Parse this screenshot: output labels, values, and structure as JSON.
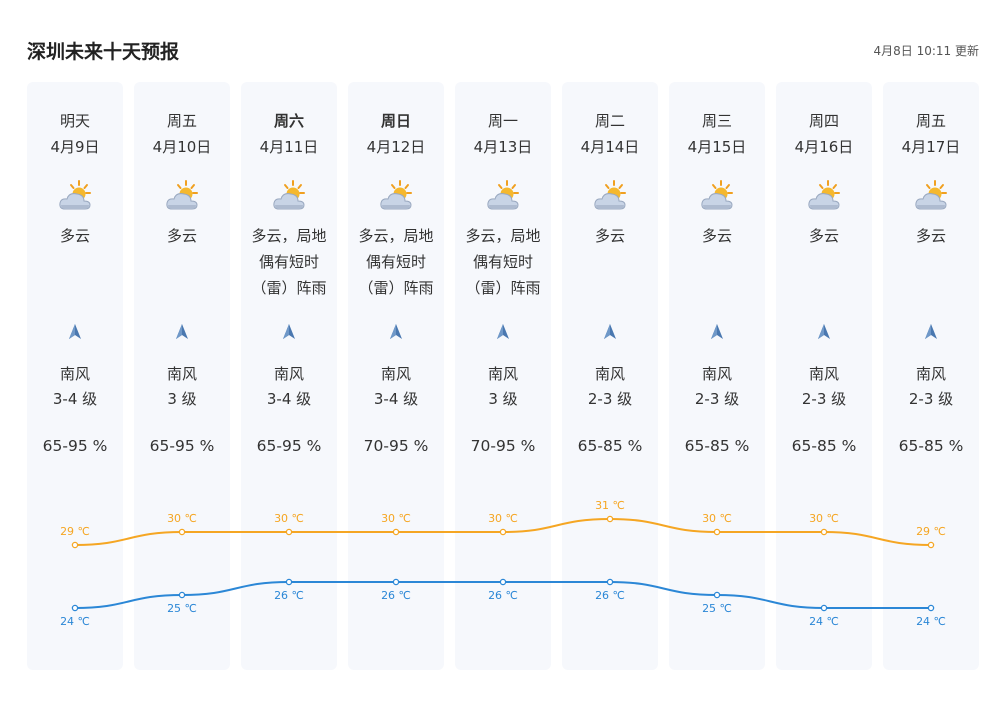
{
  "header": {
    "title": "深圳未来十天预报",
    "updated_date": "4月8日",
    "updated_time": "10:11",
    "updated_suffix": "更新"
  },
  "colors": {
    "high": "#f5a623",
    "low": "#2b87d6",
    "card_bg": "#f6f8fc"
  },
  "icons": {
    "weather": "partly-cloudy-icon",
    "wind": "wind-direction-arrow-icon"
  },
  "days": [
    {
      "weekday": "明天",
      "date": "4月9日",
      "bold": false,
      "condition": "多云",
      "wind_dir": "南风",
      "wind_level": "3-4 级",
      "humidity": "65-95 %"
    },
    {
      "weekday": "周五",
      "date": "4月10日",
      "bold": false,
      "condition": "多云",
      "wind_dir": "南风",
      "wind_level": "3 级",
      "humidity": "65-95 %"
    },
    {
      "weekday": "周六",
      "date": "4月11日",
      "bold": true,
      "condition": "多云，局地偶有短时（雷）阵雨",
      "wind_dir": "南风",
      "wind_level": "3-4 级",
      "humidity": "65-95 %"
    },
    {
      "weekday": "周日",
      "date": "4月12日",
      "bold": true,
      "condition": "多云，局地偶有短时（雷）阵雨",
      "wind_dir": "南风",
      "wind_level": "3-4 级",
      "humidity": "70-95 %"
    },
    {
      "weekday": "周一",
      "date": "4月13日",
      "bold": false,
      "condition": "多云，局地偶有短时（雷）阵雨",
      "wind_dir": "南风",
      "wind_level": "3 级",
      "humidity": "70-95 %"
    },
    {
      "weekday": "周二",
      "date": "4月14日",
      "bold": false,
      "condition": "多云",
      "wind_dir": "南风",
      "wind_level": "2-3 级",
      "humidity": "65-85 %"
    },
    {
      "weekday": "周三",
      "date": "4月15日",
      "bold": false,
      "condition": "多云",
      "wind_dir": "南风",
      "wind_level": "2-3 级",
      "humidity": "65-85 %"
    },
    {
      "weekday": "周四",
      "date": "4月16日",
      "bold": false,
      "condition": "多云",
      "wind_dir": "南风",
      "wind_level": "2-3 级",
      "humidity": "65-85 %"
    },
    {
      "weekday": "周五",
      "date": "4月17日",
      "bold": false,
      "condition": "多云",
      "wind_dir": "南风",
      "wind_level": "2-3 级",
      "humidity": "65-85 %"
    }
  ],
  "chart_data": {
    "type": "line",
    "unit": "℃",
    "categories": [
      "4月9日",
      "4月10日",
      "4月11日",
      "4月12日",
      "4月13日",
      "4月14日",
      "4月15日",
      "4月16日",
      "4月17日"
    ],
    "series": [
      {
        "values": [
          29,
          30,
          30,
          30,
          30,
          31,
          30,
          30,
          29
        ]
      },
      {
        "values": [
          24,
          25,
          26,
          26,
          26,
          26,
          25,
          24,
          24
        ]
      }
    ]
  }
}
